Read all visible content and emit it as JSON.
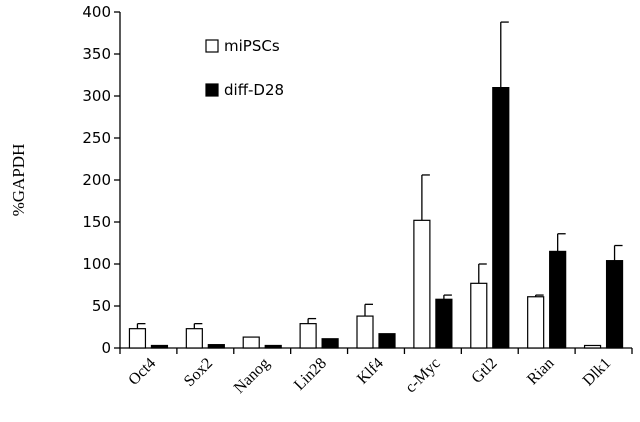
{
  "chart_data": {
    "type": "bar",
    "title": "",
    "xlabel": "",
    "ylabel": "%GAPDH",
    "ylim": [
      0,
      400
    ],
    "yticks": [
      0,
      50,
      100,
      150,
      200,
      250,
      300,
      350,
      400
    ],
    "grid": false,
    "legend_position": "top-center",
    "categories": [
      "Oct4",
      "Sox2",
      "Nanog",
      "Lin28",
      "Klf4",
      "c-Myc",
      "Gtl2",
      "Rian",
      "Dlk1"
    ],
    "series": [
      {
        "name": "miPSCs",
        "color": "#ffffff",
        "values": [
          23,
          23,
          13,
          29,
          38,
          152,
          77,
          61,
          3
        ],
        "errors": [
          6,
          6,
          0,
          6,
          14,
          54,
          23,
          2,
          0
        ]
      },
      {
        "name": "diff-D28",
        "color": "#000000",
        "values": [
          3,
          4,
          3,
          11,
          17,
          58,
          310,
          115,
          104
        ],
        "errors": [
          0,
          0,
          0,
          0,
          0,
          5,
          78,
          21,
          18
        ]
      }
    ]
  }
}
